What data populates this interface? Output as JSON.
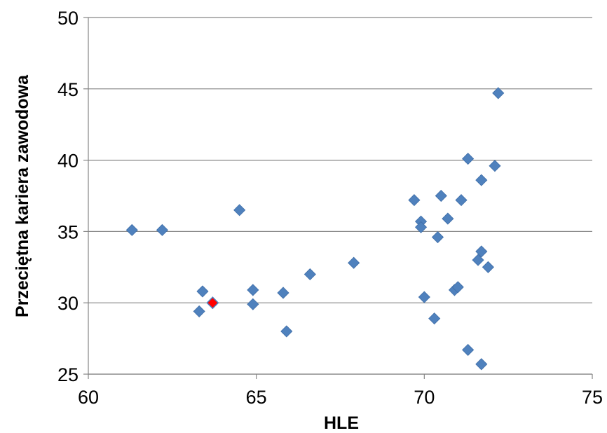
{
  "chart_data": {
    "type": "scatter",
    "title": "",
    "xlabel": "HLE",
    "ylabel": "Przeciętna kariera zawodowa",
    "xlim": [
      60,
      75
    ],
    "ylim": [
      25,
      50
    ],
    "x_ticks": [
      "60",
      "65",
      "70",
      "75"
    ],
    "y_ticks": [
      "25",
      "30",
      "35",
      "40",
      "45",
      "50"
    ],
    "grid": "horizontal",
    "legend": "none",
    "colors": {
      "series": "#4F81BD",
      "highlight": "#FF0000"
    },
    "series": [
      {
        "marker": "diamond",
        "points": [
          {
            "x": 61.3,
            "y": 35.1
          },
          {
            "x": 62.2,
            "y": 35.1
          },
          {
            "x": 63.3,
            "y": 29.4
          },
          {
            "x": 63.4,
            "y": 30.8
          },
          {
            "x": 64.5,
            "y": 36.5
          },
          {
            "x": 64.9,
            "y": 30.9
          },
          {
            "x": 64.9,
            "y": 29.9
          },
          {
            "x": 65.8,
            "y": 30.7
          },
          {
            "x": 65.9,
            "y": 28.0
          },
          {
            "x": 66.6,
            "y": 32.0
          },
          {
            "x": 67.9,
            "y": 32.8
          },
          {
            "x": 69.7,
            "y": 37.2
          },
          {
            "x": 69.9,
            "y": 35.7
          },
          {
            "x": 69.9,
            "y": 35.3
          },
          {
            "x": 70.0,
            "y": 30.4
          },
          {
            "x": 70.3,
            "y": 28.9
          },
          {
            "x": 70.4,
            "y": 34.6
          },
          {
            "x": 70.5,
            "y": 37.5
          },
          {
            "x": 70.7,
            "y": 35.9
          },
          {
            "x": 70.9,
            "y": 30.9
          },
          {
            "x": 71.0,
            "y": 31.1
          },
          {
            "x": 71.1,
            "y": 37.2
          },
          {
            "x": 71.3,
            "y": 40.1
          },
          {
            "x": 71.3,
            "y": 26.7
          },
          {
            "x": 71.6,
            "y": 33.0
          },
          {
            "x": 71.7,
            "y": 33.6
          },
          {
            "x": 71.7,
            "y": 38.6
          },
          {
            "x": 71.7,
            "y": 25.7
          },
          {
            "x": 71.9,
            "y": 32.5
          },
          {
            "x": 72.1,
            "y": 39.6
          },
          {
            "x": 72.2,
            "y": 44.7
          }
        ]
      },
      {
        "marker": "diamond",
        "highlight": true,
        "points": [
          {
            "x": 63.7,
            "y": 30.0
          }
        ]
      }
    ]
  }
}
